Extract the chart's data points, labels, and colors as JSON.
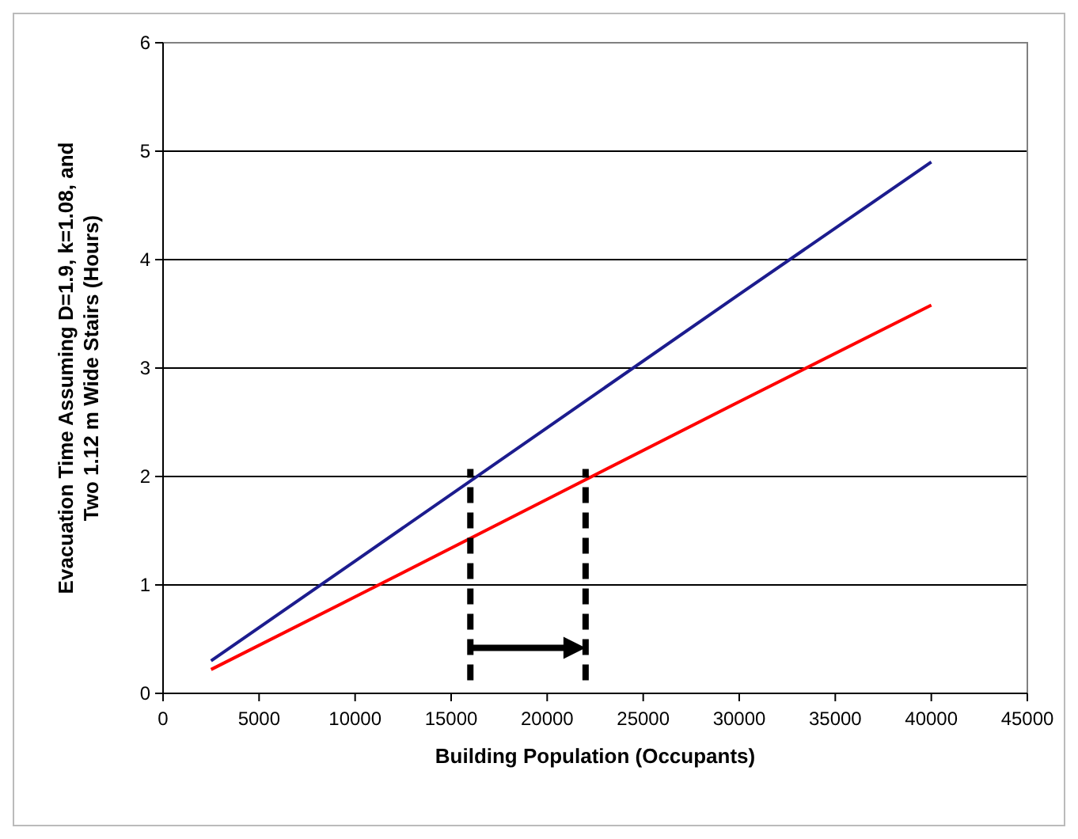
{
  "chart_data": {
    "type": "line",
    "xlabel": "Building Population (Occupants)",
    "ylabel": "Evacuation Time Assuming D=1.9, k=1.08, and Two 1.12 m Wide Stairs (Hours)",
    "x": [
      2500,
      10000,
      20000,
      30000,
      40000
    ],
    "series": [
      {
        "color": "#1c1c8e",
        "values": [
          0.3,
          1.22,
          2.45,
          3.68,
          4.9
        ]
      },
      {
        "color": "#ff0000",
        "values": [
          0.22,
          0.89,
          1.79,
          2.69,
          3.58
        ]
      }
    ],
    "xlim": [
      0,
      45000
    ],
    "xticks": [
      0,
      5000,
      10000,
      15000,
      20000,
      25000,
      30000,
      35000,
      40000,
      45000
    ],
    "ylim": [
      0,
      6
    ],
    "yticks": [
      0,
      1,
      2,
      3,
      4,
      5,
      6
    ],
    "grid": "y",
    "marker": "none",
    "line_style": "solid",
    "ref_lines": [
      {
        "axis": "x",
        "value": 16000,
        "color": "#000000",
        "line_style": "dashed"
      },
      {
        "axis": "x",
        "value": 22000,
        "color": "#000000",
        "line_style": "dashed"
      }
    ]
  }
}
